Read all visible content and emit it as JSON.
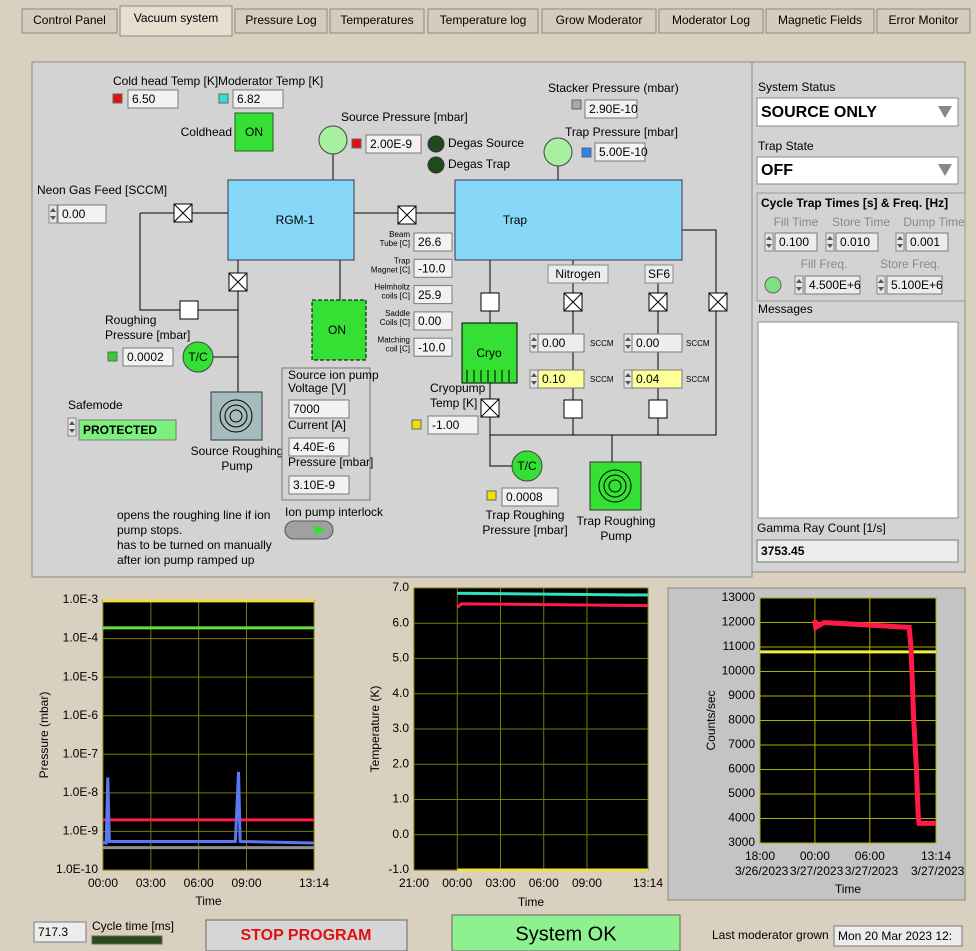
{
  "tabs": {
    "items": [
      "Control Panel",
      "Vacuum system",
      "Pressure Log",
      "Temperatures",
      "Temperature log",
      "Grow Moderator",
      "Moderator Log",
      "Magnetic Fields",
      "Error Monitor"
    ],
    "active": 1
  },
  "diagram": {
    "cold_head_temp": {
      "label": "Cold head Temp [K]",
      "value": "6.50"
    },
    "moderator_temp": {
      "label": "Moderator Temp [K]",
      "value": "6.82"
    },
    "coldhead": {
      "label": "Coldhead",
      "state": "ON"
    },
    "source_pressure": {
      "label": "Source Pressure [mbar]",
      "value": "2.00E-9"
    },
    "degas_source": "Degas Source",
    "degas_trap": "Degas Trap",
    "stacker_pressure": {
      "label": "Stacker Pressure (mbar)",
      "value": "2.90E-10"
    },
    "trap_pressure": {
      "label": "Trap Pressure [mbar]",
      "value": "5.00E-10"
    },
    "neon_gas_feed": {
      "label": "Neon Gas Feed [SCCM]",
      "value": "0.00"
    },
    "rgm": "RGM-1",
    "trap": "Trap",
    "readings": [
      {
        "label": [
          "Beam",
          "Tube [C]"
        ],
        "value": "26.6"
      },
      {
        "label": [
          "Trap",
          "Magnet [C]"
        ],
        "value": "-10.0"
      },
      {
        "label": [
          "Helmholtz",
          "coils [C]"
        ],
        "value": "25.9"
      },
      {
        "label": [
          "Saddle",
          "Coils [C]"
        ],
        "value": "0.00"
      },
      {
        "label": [
          "Matching",
          "coil [C]"
        ],
        "value": "-10.0"
      }
    ],
    "ion_pump_state": "ON",
    "nitrogen": {
      "label": "Nitrogen",
      "flows": [
        "0.00",
        "0.10"
      ]
    },
    "sf6": {
      "label": "SF6",
      "flows": [
        "0.00",
        "0.04"
      ]
    },
    "flow_unit": "SCCM",
    "roughing_pressure": {
      "label": [
        "Roughing",
        "Pressure [mbar]"
      ],
      "value": "0.0002"
    },
    "source_tc": "T/C",
    "trap_tc": "T/C",
    "cryo": "Cryo",
    "cryopump_temp": {
      "label": [
        "Cryopump",
        "Temp [K]"
      ],
      "value": "-1.00"
    },
    "safemode": {
      "label": "Safemode",
      "value": "PROTECTED"
    },
    "source_roughing_pump": [
      "Source Roughing",
      "Pump"
    ],
    "source_ion_pump": {
      "title": "Source ion pump",
      "voltage": {
        "label": "Voltage [V]",
        "value": "7000"
      },
      "current": {
        "label": "Current [A]",
        "value": "4.40E-6"
      },
      "pressure": {
        "label": "Pressure [mbar]",
        "value": "3.10E-9"
      }
    },
    "trap_roughing_pressure": {
      "label": [
        "Trap Roughing",
        "Pressure [mbar]"
      ],
      "value": "0.0008"
    },
    "trap_roughing_pump": [
      "Trap Roughing",
      "Pump"
    ],
    "note": [
      "opens the roughing line if ion",
      "pump stops.",
      "has to be turned on manually",
      "after ion pump ramped up"
    ],
    "ion_pump_interlock": "Ion pump interlock"
  },
  "status_panel": {
    "system_status": {
      "label": "System Status",
      "value": "SOURCE ONLY"
    },
    "trap_state": {
      "label": "Trap State",
      "value": "OFF"
    },
    "cycle": {
      "title": "Cycle Trap Times [s] & Freq. [Hz]",
      "fill_time": {
        "label": "Fill Time",
        "value": "0.100"
      },
      "store_time": {
        "label": "Store Time",
        "value": "0.010"
      },
      "dump_time": {
        "label": "Dump Time",
        "value": "0.001"
      },
      "fill_freq": {
        "label": "Fill Freq.",
        "value": "4.500E+6"
      },
      "store_freq": {
        "label": "Store Freq.",
        "value": "5.100E+6"
      }
    },
    "messages": "Messages",
    "gamma": {
      "label": "Gamma Ray Count [1/s]",
      "value": "3753.45"
    }
  },
  "footer": {
    "cycle_time": {
      "label": "Cycle time [ms]",
      "value": "717.3"
    },
    "stop": "STOP PROGRAM",
    "status": "System OK",
    "last_grown": {
      "label": "Last moderator grown",
      "value": "Mon 20 Mar 2023 12:"
    }
  },
  "chart_data": [
    {
      "type": "line",
      "x_label": "Time",
      "y_label": "Pressure (mbar)",
      "log_y": true,
      "grid": true,
      "grid_color": "#7a7a00",
      "plot_background": "#000000",
      "xlim": [
        0,
        13.233
      ],
      "ylim": [
        1e-10,
        0.001
      ],
      "xticks": [
        {
          "value": 0,
          "label": "00:00"
        },
        {
          "value": 3,
          "label": "03:00"
        },
        {
          "value": 6,
          "label": "06:00"
        },
        {
          "value": 9,
          "label": "09:00"
        },
        {
          "value": 13.233,
          "label": "13:14"
        }
      ],
      "yticks": [
        {
          "value": 0.001,
          "label": "1.0E-3"
        },
        {
          "value": 0.0001,
          "label": "1.0E-4"
        },
        {
          "value": 1e-05,
          "label": "1.0E-5"
        },
        {
          "value": 1e-06,
          "label": "1.0E-6"
        },
        {
          "value": 1e-07,
          "label": "1.0E-7"
        },
        {
          "value": 1e-08,
          "label": "1.0E-8"
        },
        {
          "value": 1e-09,
          "label": "1.0E-9"
        },
        {
          "value": 1e-10,
          "label": "1.0E-10"
        }
      ],
      "series": [
        {
          "color": "#f0e040",
          "x": [
            0,
            13.233
          ],
          "values": [
            0.00095,
            0.00095
          ]
        },
        {
          "color": "#66e040",
          "x": [
            0,
            13.233
          ],
          "values": [
            0.00019,
            0.00019
          ]
        },
        {
          "color": "#ff1a4a",
          "x": [
            0,
            13.233
          ],
          "values": [
            2e-09,
            2e-09
          ]
        },
        {
          "color": "#909090",
          "x": [
            0,
            13.233
          ],
          "values": [
            3.8e-10,
            3.8e-10
          ]
        },
        {
          "color": "#5a78f0",
          "x": [
            0,
            0.2,
            0.3,
            0.4,
            8.3,
            8.5,
            8.6,
            13.233
          ],
          "values": [
            5.2e-10,
            5e-10,
            2.5e-08,
            5.5e-10,
            5.5e-10,
            3.5e-08,
            5.5e-10,
            5e-10
          ]
        }
      ]
    },
    {
      "type": "line",
      "x_label": "Time",
      "y_label": "Temperature (K)",
      "log_y": false,
      "grid": true,
      "grid_color": "#7a7a00",
      "plot_background": "#000000",
      "xlim": [
        -3,
        13.233
      ],
      "ylim": [
        -1,
        7
      ],
      "xticks": [
        {
          "value": -3,
          "label": "21:00"
        },
        {
          "value": 0,
          "label": "00:00"
        },
        {
          "value": 3,
          "label": "03:00"
        },
        {
          "value": 6,
          "label": "06:00"
        },
        {
          "value": 9,
          "label": "09:00"
        },
        {
          "value": 13.233,
          "label": "13:14"
        }
      ],
      "yticks": [
        {
          "value": 7,
          "label": "7.0"
        },
        {
          "value": 6,
          "label": "6.0"
        },
        {
          "value": 5,
          "label": "5.0"
        },
        {
          "value": 4,
          "label": "4.0"
        },
        {
          "value": 3,
          "label": "3.0"
        },
        {
          "value": 2,
          "label": "2.0"
        },
        {
          "value": 1,
          "label": "1.0"
        },
        {
          "value": 0,
          "label": "0.0"
        },
        {
          "value": -1,
          "label": "-1.0"
        }
      ],
      "series": [
        {
          "color": "#30e0c0",
          "x": [
            0,
            13.233
          ],
          "values": [
            6.85,
            6.8
          ]
        },
        {
          "color": "#ff1a4a",
          "x": [
            0,
            0.3,
            13.233
          ],
          "values": [
            6.45,
            6.55,
            6.5
          ]
        },
        {
          "color": "#f0e040",
          "x": [
            0,
            13.233
          ],
          "values": [
            -1,
            -1
          ]
        }
      ]
    },
    {
      "type": "line",
      "x_label": "Time",
      "y_label": "Counts/sec",
      "log_y": false,
      "grid": true,
      "grid_color": "#b0b000",
      "plot_background": "#000000",
      "xlim": [
        -6,
        13.233
      ],
      "ylim": [
        3000,
        13000
      ],
      "xticks": [
        {
          "value": -6,
          "label": "18:00 3/26/2023"
        },
        {
          "value": 0,
          "label": "00:00 3/27/2023"
        },
        {
          "value": 6,
          "label": "06:00 3/27/2023"
        },
        {
          "value": 13.233,
          "label": "13:14 3/27/2023"
        }
      ],
      "yticks": [
        13000,
        12000,
        11000,
        10000,
        9000,
        8000,
        7000,
        6000,
        5000,
        4000,
        3000
      ],
      "series": [
        {
          "color": "#f0f040",
          "x": [
            -6,
            13.233
          ],
          "values": [
            10800,
            10800
          ]
        },
        {
          "color": "#ff1a4a",
          "x": [
            0,
            0.1,
            1,
            10.3,
            10.5,
            10.8,
            11.1,
            11.3,
            11.4,
            13.233
          ],
          "values": [
            12100,
            11800,
            12000,
            11800,
            11000,
            8000,
            6000,
            4000,
            3800,
            3800
          ]
        }
      ]
    }
  ]
}
